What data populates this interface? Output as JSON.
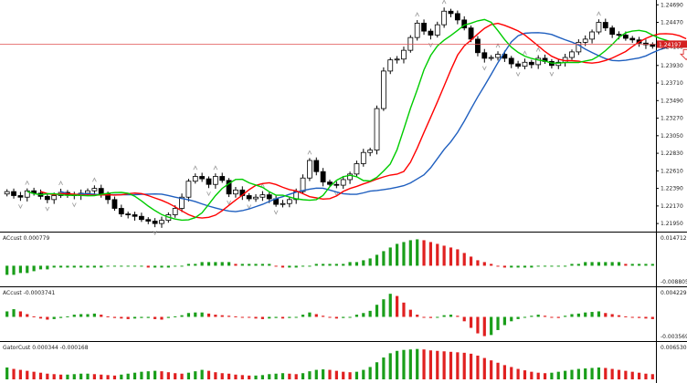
{
  "chart_data": [
    {
      "type": "candlestick",
      "price_axis_ticks": [
        "1.24690",
        "1.24470",
        "1.24160",
        "1.23930",
        "1.23710",
        "1.23490",
        "1.23270",
        "1.23050",
        "1.22830",
        "1.22610",
        "1.22390",
        "1.22170",
        "1.21950"
      ],
      "current_price_label": "1.24197",
      "current_price": 1.24197,
      "ylim": [
        1.2186,
        1.2475
      ],
      "colors": {
        "price_line": "#e05050",
        "ma_fast": "#00cc00",
        "ma_mid": "#ff0000",
        "ma_slow": "#1f5fbf",
        "arrow": "#e04040",
        "current_badge": "#d42020"
      },
      "close": [
        1.2235,
        1.223,
        1.2228,
        1.2236,
        1.2233,
        1.2229,
        1.2225,
        1.223,
        1.2234,
        1.2231,
        1.223,
        1.2233,
        1.2236,
        1.2239,
        1.2232,
        1.2225,
        1.2214,
        1.2207,
        1.2206,
        1.2204,
        1.22,
        1.2198,
        1.2195,
        1.2199,
        1.2206,
        1.2214,
        1.2228,
        1.2248,
        1.2254,
        1.2251,
        1.2244,
        1.2254,
        1.2249,
        1.2232,
        1.2237,
        1.223,
        1.2226,
        1.2228,
        1.2231,
        1.2226,
        1.2219,
        1.222,
        1.2225,
        1.2235,
        1.2252,
        1.2274,
        1.226,
        1.2247,
        1.2244,
        1.2243,
        1.225,
        1.2257,
        1.227,
        1.2284,
        1.2287,
        1.2339,
        1.2386,
        1.24,
        1.2401,
        1.2412,
        1.2428,
        1.2446,
        1.2436,
        1.2431,
        1.2444,
        1.2461,
        1.2458,
        1.245,
        1.244,
        1.2426,
        1.2409,
        1.2402,
        1.2403,
        1.2407,
        1.2402,
        1.2395,
        1.2392,
        1.2397,
        1.2394,
        1.2402,
        1.2398,
        1.2393,
        1.2397,
        1.2403,
        1.241,
        1.2422,
        1.2426,
        1.2435,
        1.2447,
        1.244,
        1.2432,
        1.2431,
        1.2427,
        1.2425,
        1.2421,
        1.2419,
        1.2417
      ],
      "indicators": [
        {
          "title": "ACcust 0.000779",
          "max_label": "0.014712",
          "min_label": "-0.008805",
          "values": [
            -0.005,
            -0.005,
            -0.004,
            -0.004,
            -0.003,
            -0.002,
            -0.002,
            -0.001,
            -0.001,
            -0.001,
            -0.001,
            -0.001,
            -0.001,
            -0.001,
            -0.001,
            0.0,
            0.0,
            0.0,
            0.0,
            0.0,
            0.0,
            -0.001,
            -0.001,
            -0.001,
            -0.001,
            0.0,
            0.0,
            0.001,
            0.001,
            0.002,
            0.002,
            0.002,
            0.002,
            0.002,
            0.001,
            0.001,
            0.001,
            0.001,
            0.001,
            0.001,
            0.0,
            -0.001,
            -0.001,
            -0.001,
            0.0,
            0.0,
            0.001,
            0.001,
            0.001,
            0.001,
            0.001,
            0.002,
            0.002,
            0.003,
            0.004,
            0.006,
            0.008,
            0.01,
            0.012,
            0.013,
            0.014,
            0.0145,
            0.014,
            0.013,
            0.012,
            0.011,
            0.01,
            0.009,
            0.007,
            0.005,
            0.003,
            0.002,
            0.001,
            0.0,
            -0.001,
            -0.001,
            -0.001,
            -0.001,
            -0.001,
            0.0,
            0.0,
            0.0,
            0.0,
            0.0,
            0.001,
            0.001,
            0.002,
            0.002,
            0.002,
            0.002,
            0.002,
            0.002,
            0.001,
            0.001,
            0.001,
            0.001,
            0.001
          ]
        },
        {
          "title": "ACcust -0.0003741",
          "max_label": "0.0042297",
          "min_label": "-0.0035691",
          "values": [
            0.001,
            0.0014,
            0.001,
            0.0005,
            0.0001,
            -0.0003,
            -0.0005,
            -0.0004,
            -0.0002,
            0.0001,
            0.0004,
            0.0005,
            0.0005,
            0.0006,
            0.0004,
            0.0001,
            -0.0002,
            -0.0003,
            -0.0004,
            -0.0003,
            -0.0002,
            -0.0002,
            -0.0004,
            -0.0005,
            -0.0002,
            0.0001,
            0.0003,
            0.0007,
            0.0008,
            0.0008,
            0.0006,
            0.0004,
            0.0003,
            0.0002,
            0.0001,
            0.0,
            -0.0001,
            -0.0003,
            -0.0004,
            -0.0003,
            -0.0002,
            -0.0003,
            -0.0002,
            0.0,
            0.0004,
            0.0008,
            0.0005,
            0.0002,
            -0.0001,
            -0.0003,
            -0.0002,
            0.0,
            0.0004,
            0.0007,
            0.0011,
            0.0022,
            0.0032,
            0.0042,
            0.0038,
            0.0026,
            0.0013,
            0.0004,
            -0.0001,
            -0.0002,
            0.0,
            0.0003,
            0.0004,
            0.0002,
            -0.0008,
            -0.002,
            -0.003,
            -0.0035,
            -0.0033,
            -0.0024,
            -0.0015,
            -0.0008,
            -0.0004,
            0.0,
            0.0002,
            0.0004,
            0.0002,
            0.0,
            -0.0002,
            0.0002,
            0.0005,
            0.0006,
            0.0008,
            0.0009,
            0.001,
            0.0007,
            0.0005,
            0.0003,
            0.0001,
            -0.0001,
            -0.0002,
            -0.0003,
            -0.0004
          ]
        },
        {
          "title": "GatorCust 0.000344 -0.000168",
          "max_label": "0.006530",
          "values": [
            0.0025,
            0.0022,
            0.002,
            0.0018,
            0.0016,
            0.0014,
            0.0012,
            0.0011,
            0.001,
            0.001,
            0.0011,
            0.0012,
            0.0012,
            0.0011,
            0.001,
            0.0009,
            0.0008,
            0.001,
            0.0012,
            0.0014,
            0.0016,
            0.0017,
            0.0018,
            0.0017,
            0.0015,
            0.0013,
            0.0012,
            0.0014,
            0.0017,
            0.002,
            0.0018,
            0.0015,
            0.0013,
            0.0012,
            0.001,
            0.0009,
            0.0008,
            0.0008,
            0.0009,
            0.0011,
            0.0012,
            0.0013,
            0.0012,
            0.0011,
            0.0013,
            0.0017,
            0.002,
            0.0021,
            0.002,
            0.0018,
            0.0016,
            0.0015,
            0.0016,
            0.002,
            0.0026,
            0.0036,
            0.0046,
            0.0055,
            0.006,
            0.0062,
            0.0063,
            0.0064,
            0.0063,
            0.0061,
            0.006,
            0.0059,
            0.0058,
            0.0057,
            0.0056,
            0.0054,
            0.005,
            0.0045,
            0.004,
            0.0035,
            0.003,
            0.0026,
            0.0022,
            0.0019,
            0.0016,
            0.0014,
            0.0013,
            0.0014,
            0.0016,
            0.0018,
            0.002,
            0.0022,
            0.0023,
            0.0024,
            0.0025,
            0.0024,
            0.0022,
            0.002,
            0.0018,
            0.0016,
            0.0014,
            0.0012,
            0.0011
          ]
        }
      ]
    }
  ]
}
